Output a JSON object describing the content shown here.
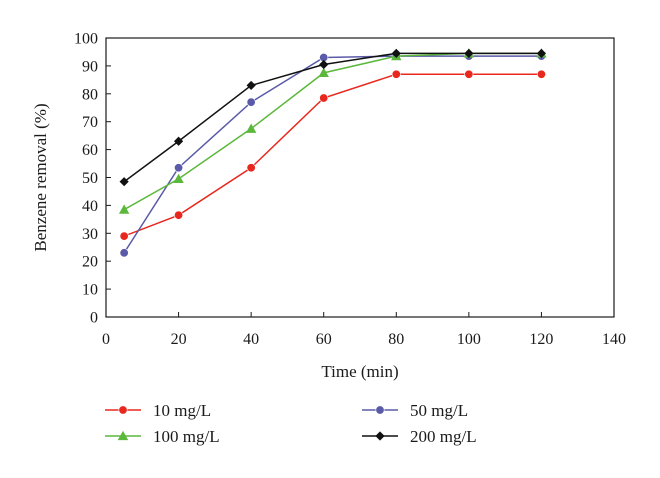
{
  "chart_data": {
    "type": "line",
    "xlabel": "Time (min)",
    "ylabel": "Benzene removal (%)",
    "xlim": [
      0,
      140
    ],
    "ylim": [
      0,
      100
    ],
    "xticks": [
      0,
      20,
      40,
      60,
      80,
      100,
      120,
      140
    ],
    "yticks": [
      0,
      10,
      20,
      30,
      40,
      50,
      60,
      70,
      80,
      90,
      100
    ],
    "grid": false,
    "legend_placement": "bottom",
    "series": [
      {
        "name": "10 mg/L",
        "color": "#e8281e",
        "marker": "circle",
        "x": [
          5,
          20,
          40,
          60,
          80,
          100,
          120
        ],
        "y": [
          29,
          36.5,
          53.5,
          78.5,
          87,
          87,
          87
        ]
      },
      {
        "name": "50 mg/L",
        "color": "#5a5aa8",
        "marker": "circle",
        "x": [
          5,
          20,
          40,
          60,
          80,
          100,
          120
        ],
        "y": [
          23,
          53.5,
          77,
          93,
          93.5,
          93.5,
          93.5
        ]
      },
      {
        "name": "100 mg/L",
        "color": "#5cb83c",
        "marker": "triangle",
        "x": [
          5,
          20,
          40,
          60,
          80,
          100,
          120
        ],
        "y": [
          38.5,
          49.5,
          67.5,
          87.5,
          93.5,
          94.5,
          94.5
        ]
      },
      {
        "name": "200 mg/L",
        "color": "#111111",
        "marker": "diamond",
        "x": [
          5,
          20,
          40,
          60,
          80,
          100,
          120
        ],
        "y": [
          48.5,
          63,
          83,
          90.5,
          94.5,
          94.5,
          94.5
        ]
      }
    ]
  }
}
